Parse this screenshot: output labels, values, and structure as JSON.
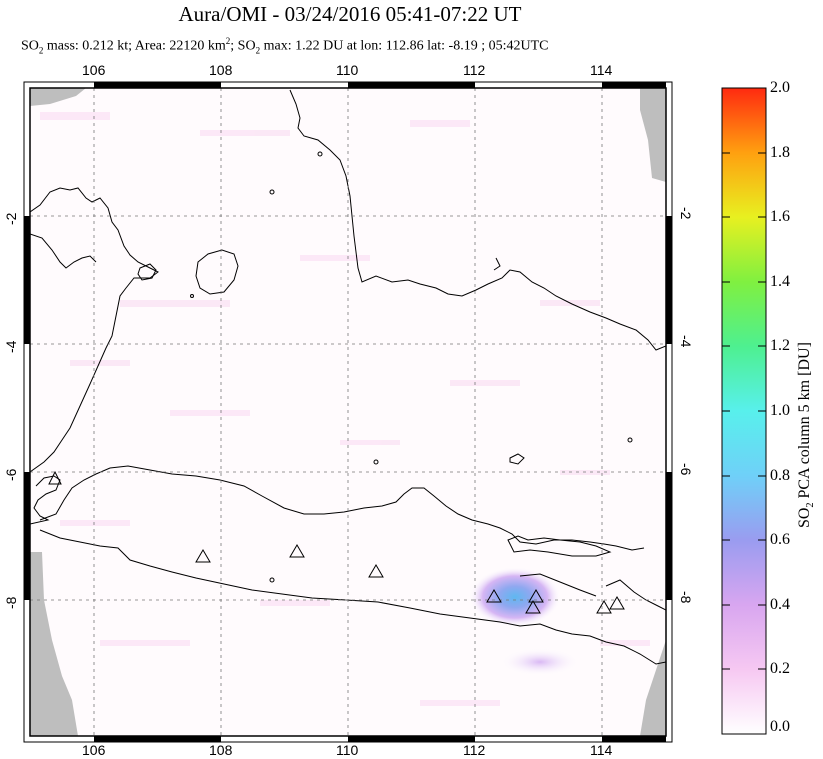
{
  "header": {
    "title": "Aura/OMI - 03/24/2016 05:41-07:22 UT",
    "subtitle": {
      "mass_label": "SO",
      "mass_sub": "2",
      "mass_rest": " mass: 0.212 kt; Area: 22120 km",
      "area_sup": "2",
      "sep": "; SO",
      "max_sub": "2",
      "max_rest": " max: 1.22 DU at lon: 112.86 lat: -8.19 ; 05:42UTC"
    }
  },
  "map": {
    "lon_ticks": [
      "106",
      "108",
      "110",
      "112",
      "114"
    ],
    "lat_ticks": [
      "-2",
      "-4",
      "-6",
      "-8"
    ],
    "frame_color": "#000000",
    "grid_color": "#777777",
    "missing_data_color": "#bebebe",
    "land_outline_color": "#000000",
    "volcano_marker": "triangle-outline",
    "volcano_count": 9,
    "so2_peak_color": "#5fb8f0"
  },
  "colorbar": {
    "title_main": "SO",
    "title_sub": "2",
    "title_rest": " PCA column 5 km [DU]",
    "labels": [
      "2.0",
      "1.8",
      "1.6",
      "1.4",
      "1.2",
      "1.0",
      "0.8",
      "0.6",
      "0.4",
      "0.2",
      "0.0"
    ],
    "colors": [
      "#ffffff",
      "#f6c8f2",
      "#d8a6f0",
      "#9a9cf0",
      "#6fd0f8",
      "#58f0ec",
      "#4ef090",
      "#80f040",
      "#e8f020",
      "#ffa010",
      "#ff2a10"
    ]
  }
}
